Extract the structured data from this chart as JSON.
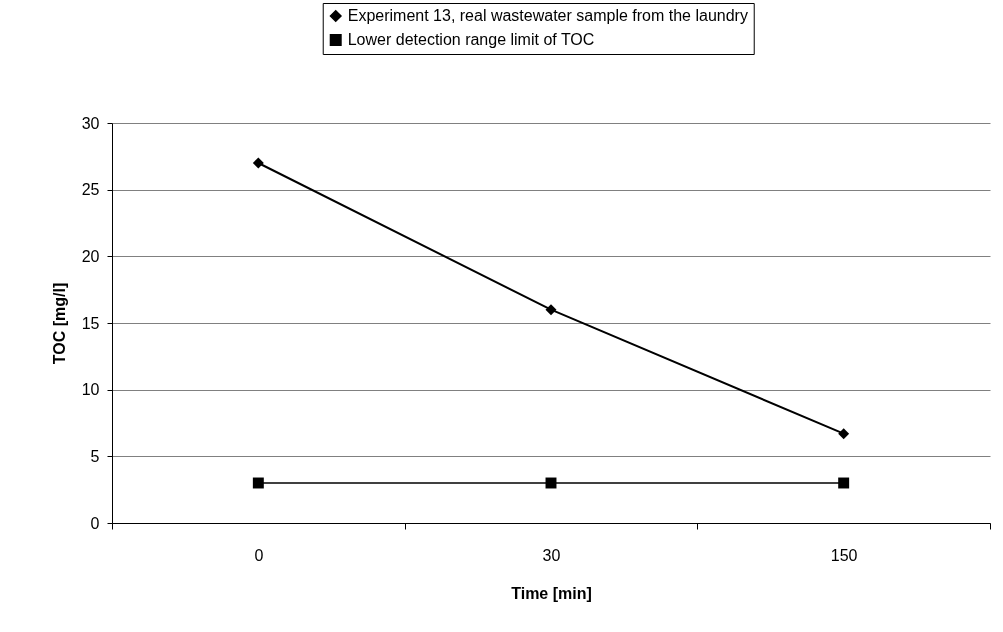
{
  "chart_data": {
    "type": "line",
    "xlabel": "Time [min]",
    "ylabel": "TOC [mg/l]",
    "categories": [
      "0",
      "30",
      "150"
    ],
    "series": [
      {
        "name": "Experiment 13, real wastewater sample from the laundry",
        "color": "#000000",
        "marker": "diamond",
        "values": [
          27,
          16,
          6.7
        ]
      },
      {
        "name": "Lower detection range limit of TOC",
        "color": "#000000",
        "marker": "square",
        "values": [
          3,
          3,
          3
        ]
      }
    ],
    "ylim": [
      0,
      30
    ],
    "yticks": [
      0,
      5,
      10,
      15,
      20,
      25,
      30
    ],
    "grid": "y",
    "legend": "top"
  }
}
